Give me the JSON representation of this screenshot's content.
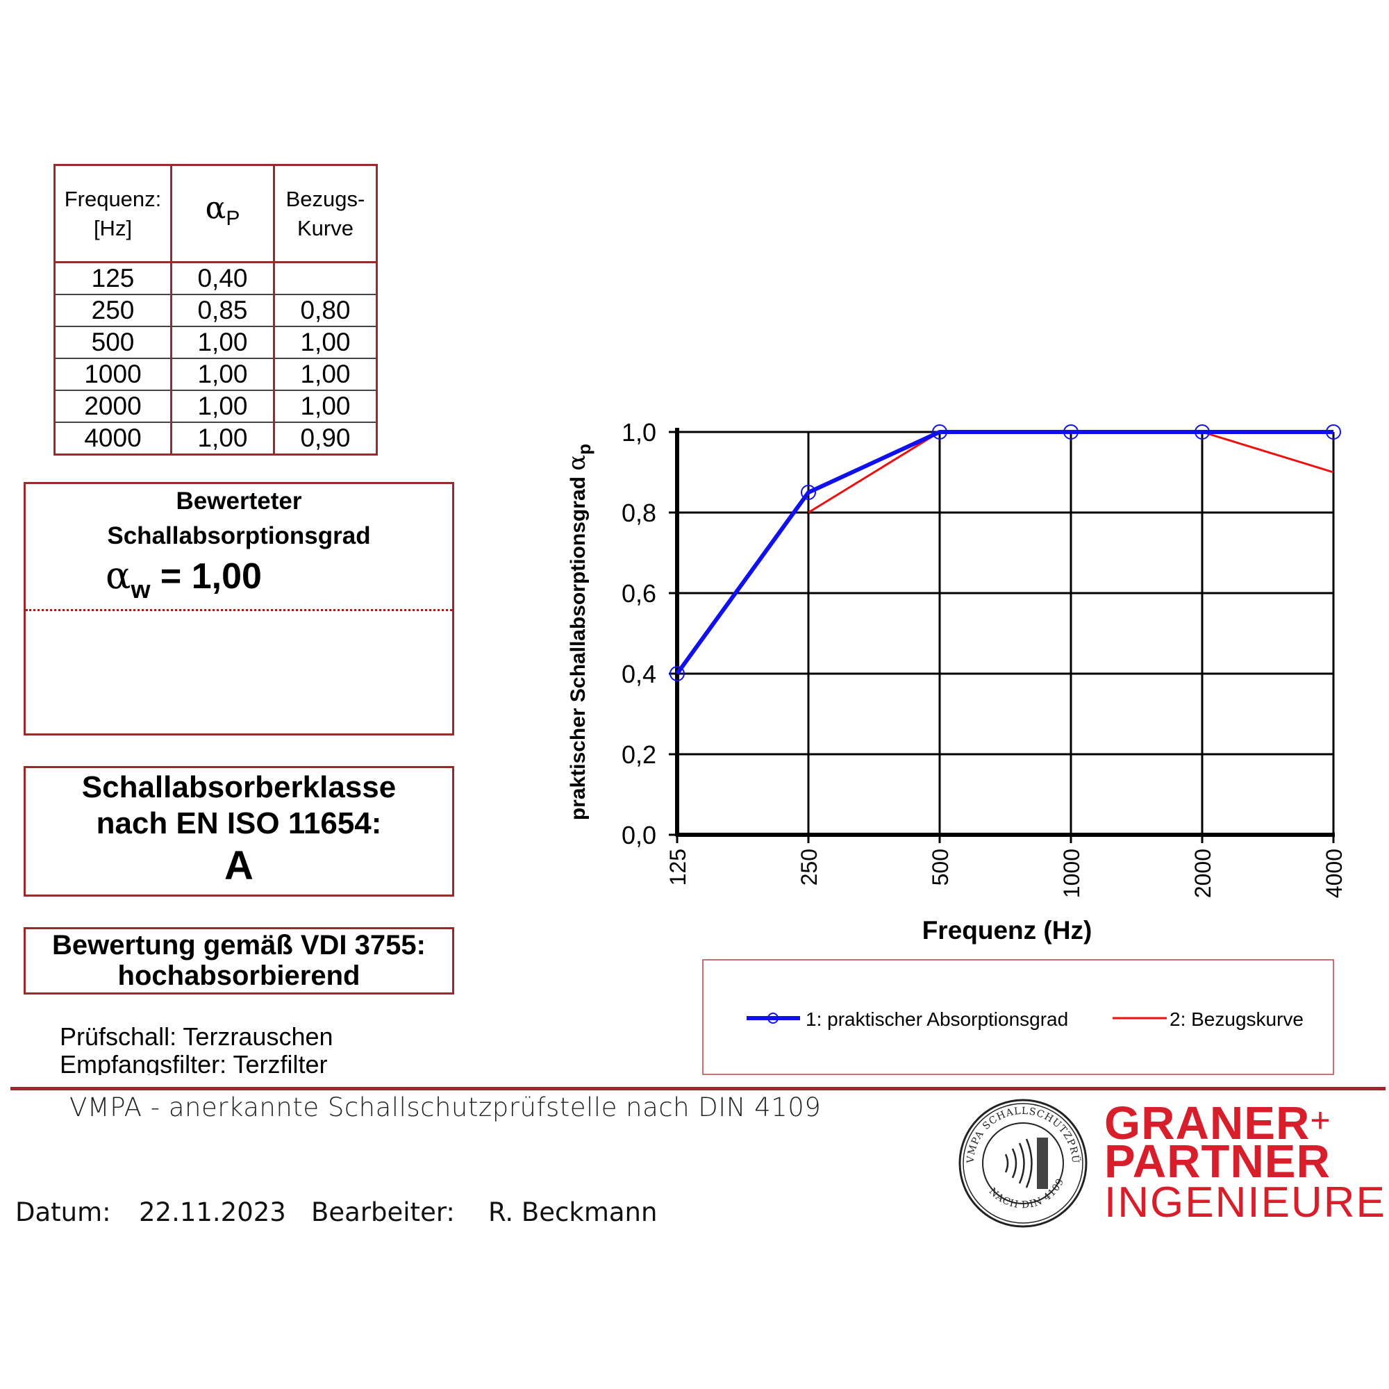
{
  "table": {
    "headers": {
      "freq_line1": "Frequenz:",
      "freq_line2": "[Hz]",
      "alpha_symbol": "α",
      "alpha_sub": "P",
      "ref_line1": "Bezugs-",
      "ref_line2": "Kurve"
    },
    "rows": [
      {
        "freq": "125",
        "alpha_p": "0,40",
        "ref": ""
      },
      {
        "freq": "250",
        "alpha_p": "0,85",
        "ref": "0,80"
      },
      {
        "freq": "500",
        "alpha_p": "1,00",
        "ref": "1,00"
      },
      {
        "freq": "1000",
        "alpha_p": "1,00",
        "ref": "1,00"
      },
      {
        "freq": "2000",
        "alpha_p": "1,00",
        "ref": "1,00"
      },
      {
        "freq": "4000",
        "alpha_p": "1,00",
        "ref": "0,90"
      }
    ]
  },
  "rating": {
    "title_line1": "Bewerteter",
    "title_line2": "Schallabsorptionsgrad",
    "symbol": "α",
    "sub": "w",
    "value": " = 1,00"
  },
  "class_box": {
    "line1": "Schallabsorberklasse",
    "line2": "nach EN ISO 11654:",
    "grade": "A"
  },
  "vdi_box": {
    "line1": "Bewertung gemäß VDI 3755:",
    "line2": "hochabsorbierend"
  },
  "notes": {
    "test_sound": "Prüfschall: Terzrauschen",
    "receive_filter": "Empfangsfilter: Terzfilter"
  },
  "footer": {
    "vmpa": "VMPA - anerkannte Schallschutzprüfstelle nach DIN 4109",
    "date_label": "Datum:",
    "date_value": "22.11.2023",
    "editor_label": "Bearbeiter:",
    "editor_value": "R. Beckmann"
  },
  "seal": {
    "text_top": "VMPA SCHALLSCHUTZPRÜFSTELLE",
    "text_bottom": "NACH DIN 4109"
  },
  "logo": {
    "line1": "GRANER",
    "plus": "+",
    "line2": "PARTNER",
    "line3": "INGENIEURE",
    "color": "#d81e2a"
  },
  "colors": {
    "frame": "#9a2a2a",
    "series1": "#1010ee",
    "series2": "#ee1010"
  },
  "chart_data": {
    "type": "line",
    "categories": [
      "125",
      "250",
      "500",
      "1000",
      "2000",
      "4000"
    ],
    "series": [
      {
        "name": "1: praktischer Absorptionsgrad",
        "values": [
          0.4,
          0.85,
          1.0,
          1.0,
          1.0,
          1.0
        ],
        "color": "#1010ee",
        "marker": "circle"
      },
      {
        "name": "2: Bezugskurve",
        "values": [
          null,
          0.8,
          1.0,
          1.0,
          1.0,
          0.9
        ],
        "color": "#ee1010",
        "marker": "none"
      }
    ],
    "yticks": [
      "0,0",
      "0,2",
      "0,4",
      "0,6",
      "0,8",
      "1,0"
    ],
    "ylim": [
      0,
      1
    ],
    "xlabel": "Frequenz (Hz)",
    "ylabel": "praktischer Schallabsorptionsgrad ",
    "ylabel_symbol": "α",
    "ylabel_sub": "p",
    "grid": true,
    "legend_position": "bottom"
  }
}
